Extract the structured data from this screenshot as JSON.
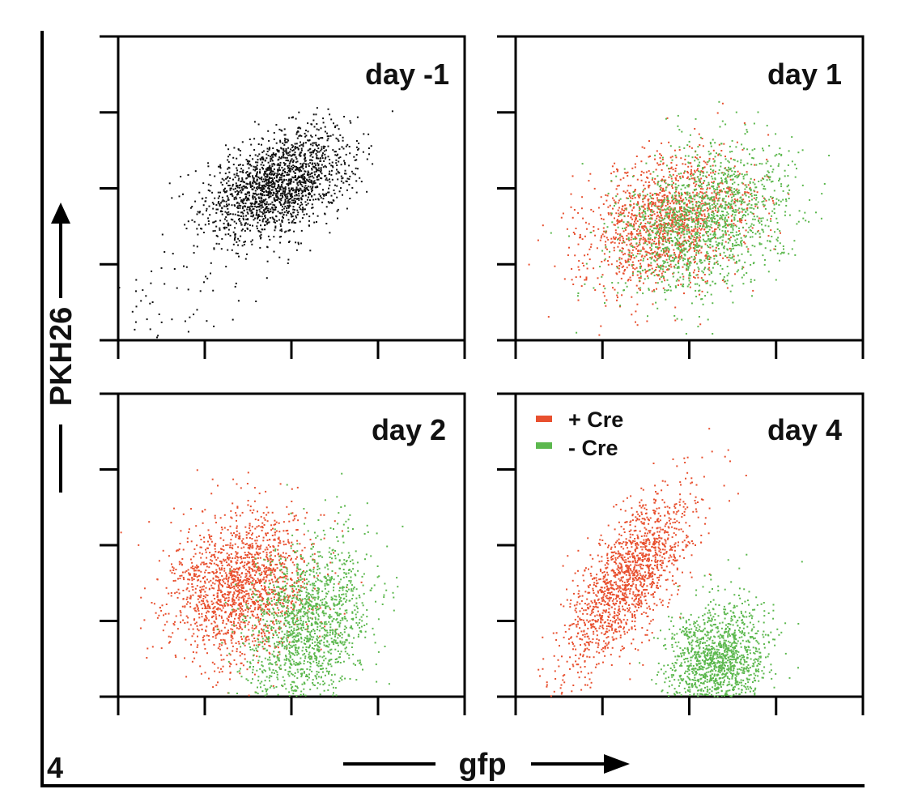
{
  "figure_label": "4",
  "colors": {
    "cre_plus": "#e8502f",
    "cre_minus": "#5cb84e",
    "ungated": "#111111"
  },
  "chart_data": [
    {
      "type": "scatter",
      "title": "day -1",
      "xlabel": "gfp",
      "ylabel": "PKH26",
      "xlim": [
        0,
        4
      ],
      "ylim": [
        0,
        4
      ],
      "grid": false,
      "series": [
        {
          "color": "#111111",
          "clusters": [
            {
              "cx": 1.85,
              "cy": 2.05,
              "sx": 0.42,
              "sy": 0.36,
              "rho": 0.45,
              "n": 1800
            },
            {
              "cx": 0.6,
              "cy": 0.45,
              "sx": 0.4,
              "sy": 0.35,
              "rho": 0.3,
              "n": 55
            }
          ]
        }
      ]
    },
    {
      "type": "scatter",
      "title": "day 1",
      "xlabel": "gfp",
      "ylabel": "PKH26",
      "xlim": [
        0,
        4
      ],
      "ylim": [
        0,
        4
      ],
      "grid": false,
      "series": [
        {
          "name": "+ Cre",
          "color": "#e8502f",
          "clusters": [
            {
              "cx": 1.75,
              "cy": 1.55,
              "sx": 0.48,
              "sy": 0.45,
              "rho": 0.3,
              "n": 1500
            }
          ]
        },
        {
          "name": "- Cre",
          "color": "#5cb84e",
          "clusters": [
            {
              "cx": 2.15,
              "cy": 1.55,
              "sx": 0.5,
              "sy": 0.5,
              "rho": 0.3,
              "n": 1500
            }
          ]
        }
      ]
    },
    {
      "type": "scatter",
      "title": "day 2",
      "xlabel": "gfp",
      "ylabel": "PKH26",
      "xlim": [
        0,
        4
      ],
      "ylim": [
        0,
        4
      ],
      "grid": false,
      "series": [
        {
          "name": "+ Cre",
          "color": "#e8502f",
          "clusters": [
            {
              "cx": 1.4,
              "cy": 1.45,
              "sx": 0.42,
              "sy": 0.5,
              "rho": 0.1,
              "n": 1700
            }
          ]
        },
        {
          "name": "- Cre",
          "color": "#5cb84e",
          "clusters": [
            {
              "cx": 2.2,
              "cy": 0.95,
              "sx": 0.35,
              "sy": 0.55,
              "rho": 0.2,
              "n": 1500
            }
          ]
        }
      ]
    },
    {
      "type": "scatter",
      "title": "day 4",
      "xlabel": "gfp",
      "ylabel": "PKH26",
      "xlim": [
        0,
        4
      ],
      "ylim": [
        0,
        4
      ],
      "grid": false,
      "legend": {
        "position": "top-left",
        "entries": [
          "+ Cre",
          "- Cre"
        ]
      },
      "series": [
        {
          "name": "+ Cre",
          "color": "#e8502f",
          "clusters": [
            {
              "cx": 1.3,
              "cy": 1.55,
              "sx": 0.38,
              "sy": 0.6,
              "rho": 0.72,
              "n": 1500
            }
          ]
        },
        {
          "name": "- Cre",
          "color": "#5cb84e",
          "clusters": [
            {
              "cx": 2.3,
              "cy": 0.45,
              "sx": 0.3,
              "sy": 0.4,
              "rho": 0.15,
              "n": 1400
            }
          ]
        }
      ]
    }
  ]
}
